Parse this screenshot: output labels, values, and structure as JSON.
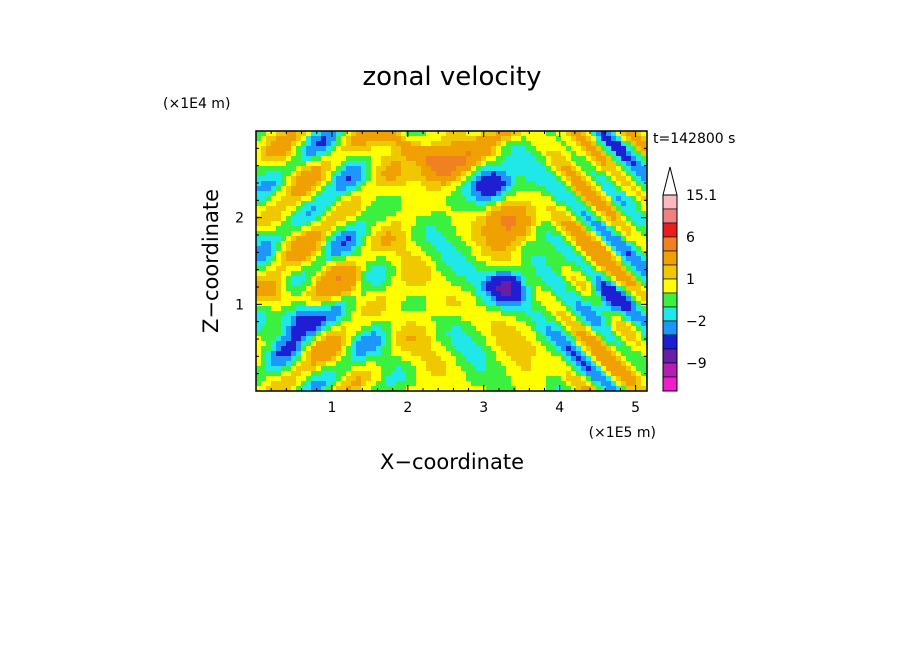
{
  "chart_data": {
    "type": "heatmap",
    "title": "zonal velocity",
    "xlabel": "X−coordinate",
    "ylabel": "Z−coordinate",
    "x_unit": "(×1E5 m)",
    "y_unit": "(×1E4 m)",
    "time_label": "t=142800 s",
    "xlim": [
      0,
      5.15
    ],
    "ylim": [
      0,
      3.0
    ],
    "x_ticks": [
      "1",
      "2",
      "3",
      "4",
      "5"
    ],
    "y_ticks": [
      "1",
      "2"
    ],
    "colorbar": {
      "levels": [
        {
          "value": 15.1,
          "label": "15.1",
          "color": "#ffb8c0"
        },
        {
          "value": 12,
          "label": "",
          "color": "#f28080"
        },
        {
          "value": 9,
          "label": "",
          "color": "#e81e1e"
        },
        {
          "value": 6,
          "label": "6",
          "color": "#f08020"
        },
        {
          "value": 3,
          "label": "",
          "color": "#f0a000"
        },
        {
          "value": 2,
          "label": "",
          "color": "#f0c800"
        },
        {
          "value": 1,
          "label": "1",
          "color": "#ffff00"
        },
        {
          "value": 0,
          "label": "",
          "color": "#3cf040"
        },
        {
          "value": -1,
          "label": "",
          "color": "#20e8e8"
        },
        {
          "value": -2,
          "label": "-2",
          "color": "#1e96ff"
        },
        {
          "value": -4,
          "label": "",
          "color": "#1e1ed2"
        },
        {
          "value": -6,
          "label": "",
          "color": "#6a1ea8"
        },
        {
          "value": -9,
          "label": "-9",
          "color": "#b41eb4"
        },
        {
          "value": -12,
          "label": "",
          "color": "#f01ec8"
        }
      ]
    },
    "field_features": [
      {
        "x": 0.55,
        "z": 0.85,
        "value": -6,
        "note": "negative core lower left"
      },
      {
        "x": 0.3,
        "z": 1.1,
        "value": 4
      },
      {
        "x": 1.2,
        "z": 1.25,
        "value": 3
      },
      {
        "x": 2.45,
        "z": 2.6,
        "value": 6
      },
      {
        "x": 3.1,
        "z": 2.4,
        "value": -6
      },
      {
        "x": 3.35,
        "z": 1.95,
        "value": 6
      },
      {
        "x": 3.3,
        "z": 1.2,
        "value": -6
      },
      {
        "x": 2.6,
        "z": 1.0,
        "value": 1
      },
      {
        "x": 2.5,
        "z": 0.5,
        "value": 0
      },
      {
        "x": 1.8,
        "z": 1.7,
        "value": 0
      },
      {
        "x": 4.6,
        "z": 1.0,
        "value": -4
      }
    ]
  }
}
